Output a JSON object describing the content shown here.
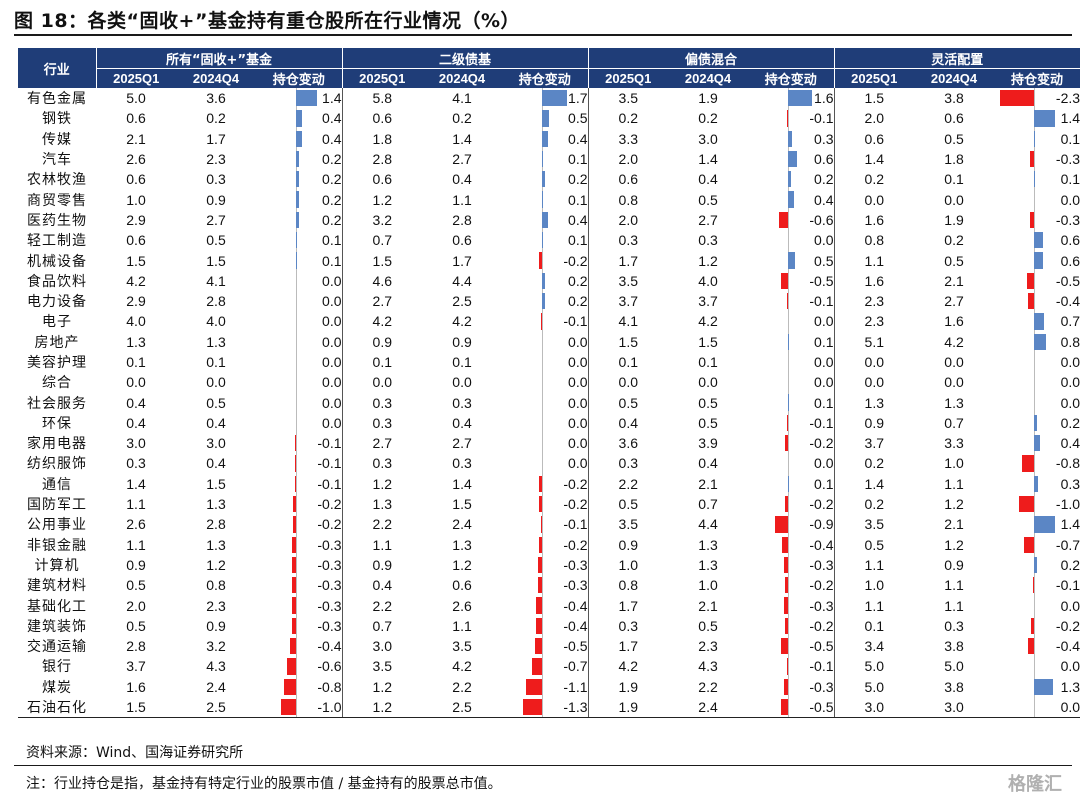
{
  "title": "图 18：各类“固收+”基金持有重仓股所在行业情况（%）",
  "header": {
    "industry_label": "行业",
    "groups": [
      "所有“固收+”基金",
      "二级债基",
      "偏债混合",
      "灵活配置"
    ],
    "subcols": [
      "2025Q1",
      "2024Q4",
      "持仓变动"
    ]
  },
  "colors": {
    "header_bg": "#1f3d78",
    "positive_bar": "#5b86c5",
    "negative_bar": "#ee1c1c"
  },
  "rows": [
    {
      "industry": "有色金属",
      "v": [
        "5.0",
        "3.6",
        "1.4",
        "5.8",
        "4.1",
        "1.7",
        "3.5",
        "1.9",
        "1.6",
        "1.5",
        "3.8",
        "-2.3"
      ]
    },
    {
      "industry": "钢铁",
      "v": [
        "0.6",
        "0.2",
        "0.4",
        "0.6",
        "0.2",
        "0.5",
        "0.2",
        "0.2",
        "-0.1",
        "2.0",
        "0.6",
        "1.4"
      ]
    },
    {
      "industry": "传媒",
      "v": [
        "2.1",
        "1.7",
        "0.4",
        "1.8",
        "1.4",
        "0.4",
        "3.3",
        "3.0",
        "0.3",
        "0.6",
        "0.5",
        "0.1"
      ]
    },
    {
      "industry": "汽车",
      "v": [
        "2.6",
        "2.3",
        "0.2",
        "2.8",
        "2.7",
        "0.1",
        "2.0",
        "1.4",
        "0.6",
        "1.4",
        "1.8",
        "-0.3"
      ]
    },
    {
      "industry": "农林牧渔",
      "v": [
        "0.6",
        "0.3",
        "0.2",
        "0.6",
        "0.4",
        "0.2",
        "0.6",
        "0.4",
        "0.2",
        "0.2",
        "0.1",
        "0.1"
      ]
    },
    {
      "industry": "商贸零售",
      "v": [
        "1.0",
        "0.9",
        "0.2",
        "1.2",
        "1.1",
        "0.1",
        "0.8",
        "0.5",
        "0.4",
        "0.0",
        "0.0",
        "0.0"
      ]
    },
    {
      "industry": "医药生物",
      "v": [
        "2.9",
        "2.7",
        "0.2",
        "3.2",
        "2.8",
        "0.4",
        "2.0",
        "2.7",
        "-0.6",
        "1.6",
        "1.9",
        "-0.3"
      ]
    },
    {
      "industry": "轻工制造",
      "v": [
        "0.6",
        "0.5",
        "0.1",
        "0.7",
        "0.6",
        "0.1",
        "0.3",
        "0.3",
        "0.0",
        "0.8",
        "0.2",
        "0.6"
      ]
    },
    {
      "industry": "机械设备",
      "v": [
        "1.5",
        "1.5",
        "0.1",
        "1.5",
        "1.7",
        "-0.2",
        "1.7",
        "1.2",
        "0.5",
        "1.1",
        "0.5",
        "0.6"
      ]
    },
    {
      "industry": "食品饮料",
      "v": [
        "4.2",
        "4.1",
        "0.0",
        "4.6",
        "4.4",
        "0.2",
        "3.5",
        "4.0",
        "-0.5",
        "1.6",
        "2.1",
        "-0.5"
      ]
    },
    {
      "industry": "电力设备",
      "v": [
        "2.9",
        "2.8",
        "0.0",
        "2.7",
        "2.5",
        "0.2",
        "3.7",
        "3.7",
        "-0.1",
        "2.3",
        "2.7",
        "-0.4"
      ]
    },
    {
      "industry": "电子",
      "v": [
        "4.0",
        "4.0",
        "0.0",
        "4.2",
        "4.2",
        "-0.1",
        "4.1",
        "4.2",
        "0.0",
        "2.3",
        "1.6",
        "0.7"
      ]
    },
    {
      "industry": "房地产",
      "v": [
        "1.3",
        "1.3",
        "0.0",
        "0.9",
        "0.9",
        "0.0",
        "1.5",
        "1.5",
        "0.1",
        "5.1",
        "4.2",
        "0.8"
      ]
    },
    {
      "industry": "美容护理",
      "v": [
        "0.1",
        "0.1",
        "0.0",
        "0.1",
        "0.1",
        "0.0",
        "0.1",
        "0.1",
        "0.0",
        "0.0",
        "0.0",
        "0.0"
      ]
    },
    {
      "industry": "综合",
      "v": [
        "0.0",
        "0.0",
        "0.0",
        "0.0",
        "0.0",
        "0.0",
        "0.0",
        "0.0",
        "0.0",
        "0.0",
        "0.0",
        "0.0"
      ]
    },
    {
      "industry": "社会服务",
      "v": [
        "0.4",
        "0.5",
        "0.0",
        "0.3",
        "0.3",
        "0.0",
        "0.5",
        "0.5",
        "0.1",
        "1.3",
        "1.3",
        "0.0"
      ]
    },
    {
      "industry": "环保",
      "v": [
        "0.4",
        "0.4",
        "0.0",
        "0.3",
        "0.4",
        "0.0",
        "0.4",
        "0.5",
        "-0.1",
        "0.9",
        "0.7",
        "0.2"
      ]
    },
    {
      "industry": "家用电器",
      "v": [
        "3.0",
        "3.0",
        "-0.1",
        "2.7",
        "2.7",
        "0.0",
        "3.6",
        "3.9",
        "-0.2",
        "3.7",
        "3.3",
        "0.4"
      ]
    },
    {
      "industry": "纺织服饰",
      "v": [
        "0.3",
        "0.4",
        "-0.1",
        "0.3",
        "0.3",
        "0.0",
        "0.3",
        "0.4",
        "0.0",
        "0.2",
        "1.0",
        "-0.8"
      ]
    },
    {
      "industry": "通信",
      "v": [
        "1.4",
        "1.5",
        "-0.1",
        "1.2",
        "1.4",
        "-0.2",
        "2.2",
        "2.1",
        "0.1",
        "1.4",
        "1.1",
        "0.3"
      ]
    },
    {
      "industry": "国防军工",
      "v": [
        "1.1",
        "1.3",
        "-0.2",
        "1.3",
        "1.5",
        "-0.2",
        "0.5",
        "0.7",
        "-0.2",
        "0.2",
        "1.2",
        "-1.0"
      ]
    },
    {
      "industry": "公用事业",
      "v": [
        "2.6",
        "2.8",
        "-0.2",
        "2.2",
        "2.4",
        "-0.1",
        "3.5",
        "4.4",
        "-0.9",
        "3.5",
        "2.1",
        "1.4"
      ]
    },
    {
      "industry": "非银金融",
      "v": [
        "1.1",
        "1.3",
        "-0.3",
        "1.1",
        "1.3",
        "-0.2",
        "0.9",
        "1.3",
        "-0.4",
        "0.5",
        "1.2",
        "-0.7"
      ]
    },
    {
      "industry": "计算机",
      "v": [
        "0.9",
        "1.2",
        "-0.3",
        "0.9",
        "1.2",
        "-0.3",
        "1.0",
        "1.3",
        "-0.3",
        "1.1",
        "0.9",
        "0.2"
      ]
    },
    {
      "industry": "建筑材料",
      "v": [
        "0.5",
        "0.8",
        "-0.3",
        "0.4",
        "0.6",
        "-0.3",
        "0.8",
        "1.0",
        "-0.2",
        "1.0",
        "1.1",
        "-0.1"
      ]
    },
    {
      "industry": "基础化工",
      "v": [
        "2.0",
        "2.3",
        "-0.3",
        "2.2",
        "2.6",
        "-0.4",
        "1.7",
        "2.1",
        "-0.3",
        "1.1",
        "1.1",
        "0.0"
      ]
    },
    {
      "industry": "建筑装饰",
      "v": [
        "0.5",
        "0.9",
        "-0.3",
        "0.7",
        "1.1",
        "-0.4",
        "0.3",
        "0.5",
        "-0.2",
        "0.1",
        "0.3",
        "-0.2"
      ]
    },
    {
      "industry": "交通运输",
      "v": [
        "2.8",
        "3.2",
        "-0.4",
        "3.0",
        "3.5",
        "-0.5",
        "1.7",
        "2.3",
        "-0.5",
        "3.4",
        "3.8",
        "-0.4"
      ]
    },
    {
      "industry": "银行",
      "v": [
        "3.7",
        "4.3",
        "-0.6",
        "3.5",
        "4.2",
        "-0.7",
        "4.2",
        "4.3",
        "-0.1",
        "5.0",
        "5.0",
        "0.0"
      ]
    },
    {
      "industry": "煤炭",
      "v": [
        "1.6",
        "2.4",
        "-0.8",
        "1.2",
        "2.2",
        "-1.1",
        "1.9",
        "2.2",
        "-0.3",
        "5.0",
        "3.8",
        "1.3"
      ]
    },
    {
      "industry": "石油石化",
      "v": [
        "1.5",
        "2.5",
        "-1.0",
        "1.2",
        "2.5",
        "-1.3",
        "1.9",
        "2.4",
        "-0.5",
        "3.0",
        "3.0",
        "0.0"
      ]
    }
  ],
  "source": "资料来源：Wind、国海证券研究所",
  "note": "注：行业持仓是指，基金持有特定行业的股票市值 / 基金持有的股票总市值。",
  "watermark": "格隆汇"
}
